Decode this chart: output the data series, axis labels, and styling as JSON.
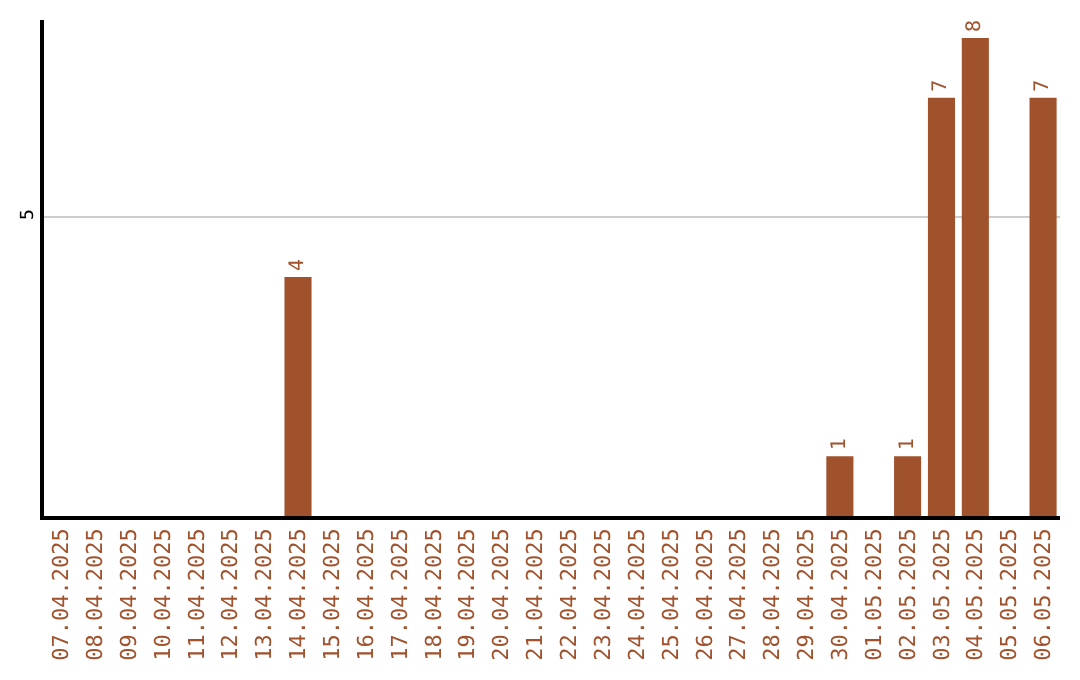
{
  "chart_data": {
    "type": "bar",
    "categories": [
      "07.04.2025",
      "08.04.2025",
      "09.04.2025",
      "10.04.2025",
      "11.04.2025",
      "12.04.2025",
      "13.04.2025",
      "14.04.2025",
      "15.04.2025",
      "16.04.2025",
      "17.04.2025",
      "18.04.2025",
      "19.04.2025",
      "20.04.2025",
      "21.04.2025",
      "22.04.2025",
      "23.04.2025",
      "24.04.2025",
      "25.04.2025",
      "26.04.2025",
      "27.04.2025",
      "28.04.2025",
      "29.04.2025",
      "30.04.2025",
      "01.05.2025",
      "02.05.2025",
      "03.05.2025",
      "04.05.2025",
      "05.05.2025",
      "06.05.2025"
    ],
    "values": [
      0,
      0,
      0,
      0,
      0,
      0,
      0,
      4,
      0,
      0,
      0,
      0,
      0,
      0,
      0,
      0,
      0,
      0,
      0,
      0,
      0,
      0,
      0,
      1,
      0,
      1,
      7,
      8,
      0,
      7
    ],
    "value_labels": [
      null,
      null,
      null,
      null,
      null,
      null,
      null,
      "4",
      null,
      null,
      null,
      null,
      null,
      null,
      null,
      null,
      null,
      null,
      null,
      null,
      null,
      null,
      null,
      "1",
      null,
      "1",
      "7",
      "8",
      null,
      "7"
    ],
    "color": "#a0522d",
    "ylim": [
      0,
      8.3
    ],
    "yticks": [
      5
    ],
    "grid": "y",
    "legend": false
  }
}
